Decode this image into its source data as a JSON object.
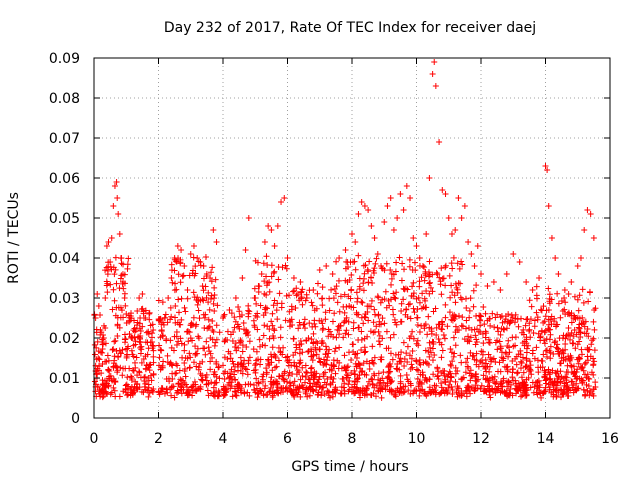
{
  "chart_data": {
    "type": "scatter",
    "title": "Day 232 of 2017, Rate Of TEC Index for receiver daej",
    "xlabel": "GPS time / hours",
    "ylabel": "ROTI / TECUs",
    "xlim": [
      0,
      16
    ],
    "ylim": [
      0,
      0.09
    ],
    "xticks": [
      0,
      2,
      4,
      6,
      8,
      10,
      12,
      14,
      16
    ],
    "xtick_labels": [
      "0",
      "2",
      "4",
      "6",
      "8",
      "10",
      "12",
      "14",
      "16"
    ],
    "yticks": [
      0,
      0.01,
      0.02,
      0.03,
      0.04,
      0.05,
      0.06,
      0.07,
      0.08,
      0.09
    ],
    "ytick_labels": [
      "0",
      "0.01",
      "0.02",
      "0.03",
      "0.04",
      "0.05",
      "0.06",
      "0.07",
      "0.08",
      "0.09"
    ],
    "grid": true,
    "marker": "+",
    "color": "#ff0000",
    "series": [
      {
        "name": "ROTI",
        "x": [
          0.05,
          0.1,
          0.15,
          0.2,
          0.25,
          0.3,
          0.35,
          0.4,
          0.45,
          0.5,
          0.55,
          0.6,
          0.65,
          0.7,
          0.72,
          0.75,
          0.8,
          0.85,
          0.9,
          0.95,
          1.0,
          1.1,
          1.2,
          1.3,
          1.4,
          1.5,
          1.6,
          1.7,
          1.8,
          2.1,
          2.2,
          2.3,
          2.4,
          2.5,
          2.6,
          2.7,
          2.8,
          2.9,
          3.0,
          3.1,
          3.2,
          3.3,
          3.4,
          3.5,
          3.6,
          3.7,
          3.8,
          4.0,
          4.2,
          4.4,
          4.6,
          4.7,
          4.8,
          5.0,
          5.1,
          5.2,
          5.3,
          5.4,
          5.5,
          5.6,
          5.7,
          5.8,
          5.9,
          6.0,
          6.2,
          6.4,
          6.6,
          6.8,
          7.0,
          7.2,
          7.4,
          7.6,
          7.8,
          8.0,
          8.1,
          8.2,
          8.3,
          8.4,
          8.5,
          8.6,
          8.7,
          8.8,
          8.9,
          9.0,
          9.1,
          9.2,
          9.3,
          9.4,
          9.5,
          9.6,
          9.7,
          9.8,
          9.9,
          10.0,
          10.1,
          10.2,
          10.3,
          10.4,
          10.5,
          10.55,
          10.6,
          10.7,
          10.8,
          10.9,
          11.0,
          11.1,
          11.2,
          11.3,
          11.4,
          11.5,
          11.6,
          11.7,
          11.8,
          11.9,
          12.0,
          12.2,
          12.4,
          12.6,
          12.8,
          13.0,
          13.2,
          13.4,
          13.6,
          13.8,
          14.0,
          14.05,
          14.1,
          14.2,
          14.3,
          14.4,
          14.6,
          14.8,
          15.0,
          15.1,
          15.2,
          15.3,
          15.4,
          15.5
        ],
        "y": [
          0.025,
          0.031,
          0.028,
          0.022,
          0.019,
          0.02,
          0.03,
          0.043,
          0.044,
          0.039,
          0.045,
          0.053,
          0.058,
          0.059,
          0.055,
          0.051,
          0.046,
          0.04,
          0.034,
          0.03,
          0.026,
          0.021,
          0.02,
          0.022,
          0.03,
          0.031,
          0.025,
          0.021,
          0.019,
          0.022,
          0.025,
          0.03,
          0.035,
          0.04,
          0.043,
          0.042,
          0.038,
          0.032,
          0.041,
          0.043,
          0.04,
          0.039,
          0.038,
          0.036,
          0.035,
          0.047,
          0.044,
          0.025,
          0.027,
          0.03,
          0.035,
          0.042,
          0.05,
          0.03,
          0.033,
          0.036,
          0.044,
          0.048,
          0.047,
          0.043,
          0.048,
          0.054,
          0.055,
          0.04,
          0.035,
          0.034,
          0.03,
          0.032,
          0.037,
          0.038,
          0.036,
          0.04,
          0.042,
          0.046,
          0.044,
          0.051,
          0.054,
          0.053,
          0.052,
          0.048,
          0.045,
          0.041,
          0.038,
          0.049,
          0.053,
          0.055,
          0.047,
          0.05,
          0.056,
          0.052,
          0.058,
          0.055,
          0.045,
          0.043,
          0.04,
          0.038,
          0.046,
          0.06,
          0.086,
          0.089,
          0.083,
          0.069,
          0.057,
          0.056,
          0.05,
          0.046,
          0.047,
          0.055,
          0.05,
          0.053,
          0.044,
          0.041,
          0.038,
          0.043,
          0.036,
          0.033,
          0.034,
          0.032,
          0.036,
          0.041,
          0.039,
          0.034,
          0.032,
          0.035,
          0.063,
          0.062,
          0.053,
          0.045,
          0.04,
          0.036,
          0.032,
          0.034,
          0.038,
          0.04,
          0.047,
          0.052,
          0.051,
          0.045
        ]
      }
    ]
  }
}
